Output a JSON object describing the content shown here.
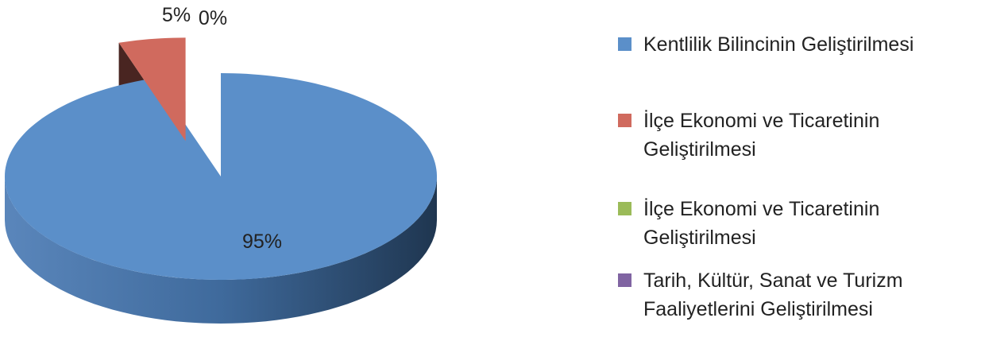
{
  "chart_data": {
    "type": "pie",
    "title": "",
    "legend_position": "right",
    "slices": [
      {
        "label": "Kentlilik Bilincinin Geliştirilmesi",
        "value": 95,
        "display": "95%",
        "color": "#5b8fc9",
        "exploded": false
      },
      {
        "label": "İlçe Ekonomi ve Ticaretinin Geliştirilmesi",
        "value": 5,
        "display": "5%",
        "color": "#d06a5e",
        "exploded": true
      },
      {
        "label": "İlçe Ekonomi ve Ticaretinin Geliştirilmesi",
        "value": 0,
        "display": "0%",
        "color": "#9bbb59",
        "exploded": true
      },
      {
        "label": "Tarih, Kültür, Sanat ve Turizm Faaliyetlerini Geliştirilmesi",
        "value": 0,
        "display": "",
        "color": "#8064a2",
        "exploded": true
      }
    ]
  }
}
